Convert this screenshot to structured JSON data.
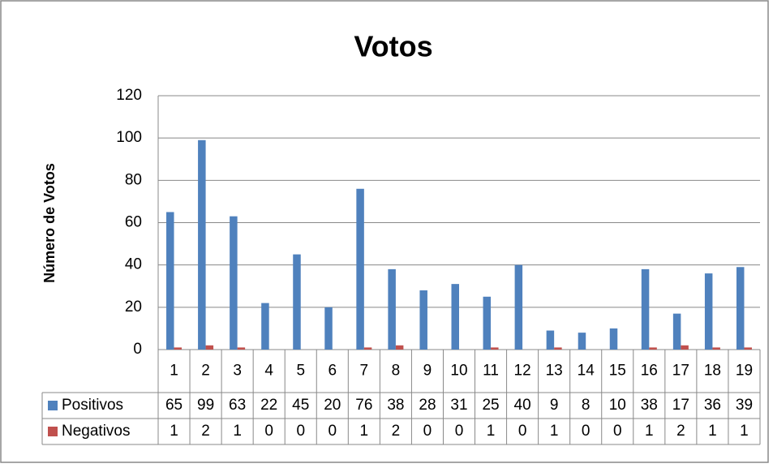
{
  "chart_data": {
    "type": "bar",
    "title": "Votos",
    "y_label": "Número de Votos",
    "categories": [
      "1",
      "2",
      "3",
      "4",
      "5",
      "6",
      "7",
      "8",
      "9",
      "10",
      "11",
      "12",
      "13",
      "14",
      "15",
      "16",
      "17",
      "18",
      "19"
    ],
    "series": [
      {
        "name": "Positivos",
        "color": "#4f81bd",
        "values": [
          65,
          99,
          63,
          22,
          45,
          20,
          76,
          38,
          28,
          31,
          25,
          40,
          9,
          8,
          10,
          38,
          17,
          36,
          39
        ]
      },
      {
        "name": "Negativos",
        "color": "#c0504d",
        "values": [
          1,
          2,
          1,
          0,
          0,
          0,
          1,
          2,
          0,
          0,
          1,
          0,
          1,
          0,
          0,
          1,
          2,
          1,
          1
        ]
      }
    ],
    "ylim": [
      0,
      120
    ],
    "yticks": [
      0,
      20,
      40,
      60,
      80,
      100,
      120
    ],
    "grid": true
  }
}
